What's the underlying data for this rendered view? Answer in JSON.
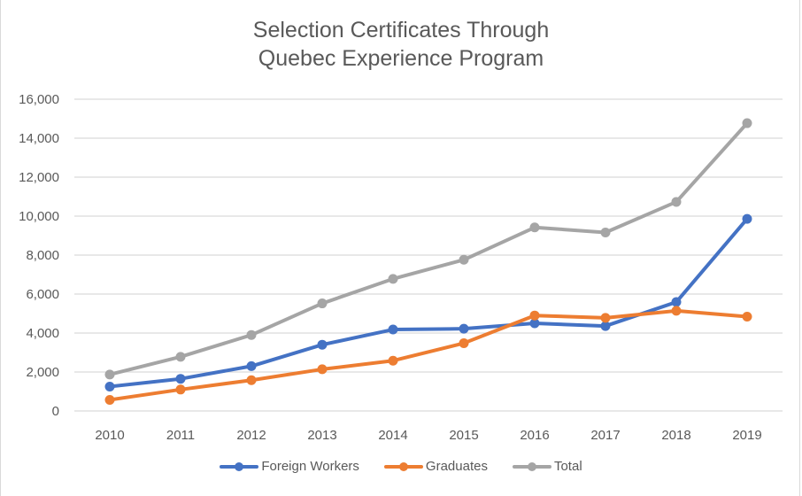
{
  "chart_data": {
    "type": "line",
    "title": "Selection Certificates Through Quebec Experience Program",
    "title_lines": [
      "Selection Certificates Through",
      "Quebec Experience Program"
    ],
    "xlabel": "",
    "ylabel": "",
    "categories": [
      "2010",
      "2011",
      "2012",
      "2013",
      "2014",
      "2015",
      "2016",
      "2017",
      "2018",
      "2019"
    ],
    "ylim": [
      0,
      16000
    ],
    "yticks": [
      0,
      2000,
      4000,
      6000,
      8000,
      10000,
      12000,
      14000,
      16000
    ],
    "ytick_labels": [
      "0",
      "2,000",
      "4,000",
      "6,000",
      "8,000",
      "10,000",
      "12,000",
      "14,000",
      "16,000"
    ],
    "grid": true,
    "legend_position": "bottom",
    "series": [
      {
        "name": "Foreign Workers",
        "color": "#4472C4",
        "values": [
          1250,
          1650,
          2300,
          3400,
          4180,
          4220,
          4500,
          4360,
          5590,
          9860
        ]
      },
      {
        "name": "Graduates",
        "color": "#ED7D31",
        "values": [
          570,
          1100,
          1580,
          2140,
          2580,
          3480,
          4900,
          4780,
          5140,
          4840
        ]
      },
      {
        "name": "Total",
        "color": "#A5A5A5",
        "values": [
          1870,
          2780,
          3900,
          5520,
          6780,
          7760,
          9420,
          9160,
          10730,
          14770
        ]
      }
    ]
  }
}
